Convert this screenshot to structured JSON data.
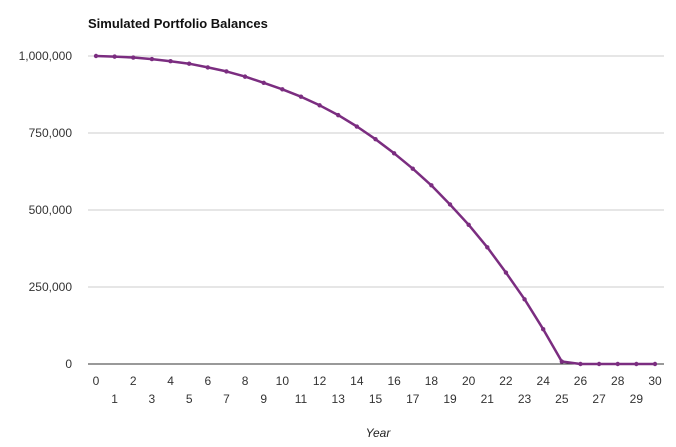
{
  "chart_data": {
    "type": "line",
    "title": "Simulated Portfolio Balances",
    "xlabel": "Year",
    "ylabel": "",
    "x": [
      0,
      1,
      2,
      3,
      4,
      5,
      6,
      7,
      8,
      9,
      10,
      11,
      12,
      13,
      14,
      15,
      16,
      17,
      18,
      19,
      20,
      21,
      22,
      23,
      24,
      25,
      26,
      27,
      28,
      29,
      30
    ],
    "series": [
      {
        "values": [
          1000000,
          998000,
          995000,
          990000,
          983000,
          975000,
          963000,
          950000,
          933000,
          913000,
          892000,
          868000,
          840000,
          808000,
          771000,
          730000,
          684000,
          634000,
          580000,
          518000,
          452000,
          379000,
          297000,
          210000,
          113000,
          8000,
          0,
          0,
          0,
          0,
          0
        ],
        "color": "#7b2d80"
      }
    ],
    "xlim": [
      0,
      30
    ],
    "ylim": [
      0,
      1000000
    ],
    "yticks": [
      0,
      250000,
      500000,
      750000,
      1000000
    ],
    "ytick_labels": [
      "0",
      "250,000",
      "500,000",
      "750,000",
      "1,000,000"
    ],
    "grid": true,
    "legend": "none"
  }
}
